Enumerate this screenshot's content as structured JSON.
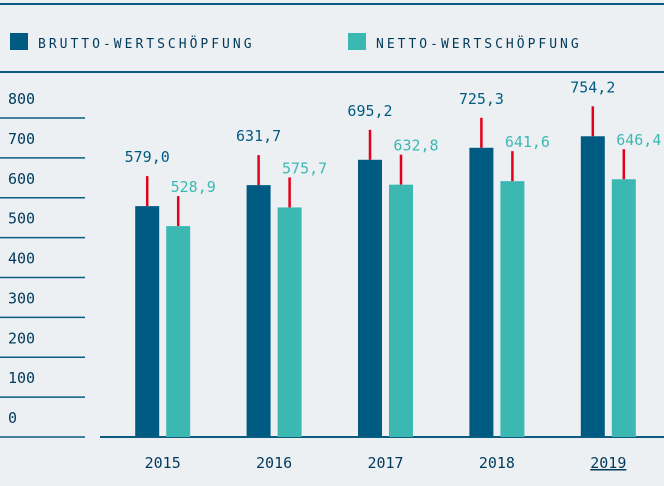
{
  "chart_data": {
    "type": "bar",
    "categories": [
      "2015",
      "2016",
      "2017",
      "2018",
      "2019"
    ],
    "series": [
      {
        "name": "BRUTTO-WERTSCHÖPFUNG",
        "color": "#005b82",
        "values": [
          579.0,
          631.7,
          695.2,
          725.3,
          754.2
        ],
        "value_labels": [
          "579,0",
          "631,7",
          "695,2",
          "725,3",
          "754,2"
        ]
      },
      {
        "name": "NETTO-WERTSCHÖPFUNG",
        "color": "#3cb8b2",
        "values": [
          528.9,
          575.7,
          632.8,
          641.6,
          646.4
        ],
        "value_labels": [
          "528,9",
          "575,7",
          "632,8",
          "641,6",
          "646,4"
        ]
      }
    ],
    "ylim": [
      0,
      800
    ],
    "yticks": [
      0,
      100,
      200,
      300,
      400,
      500,
      600,
      700,
      800
    ],
    "marker_color": "#e2001a",
    "underlined_category": "2019"
  }
}
